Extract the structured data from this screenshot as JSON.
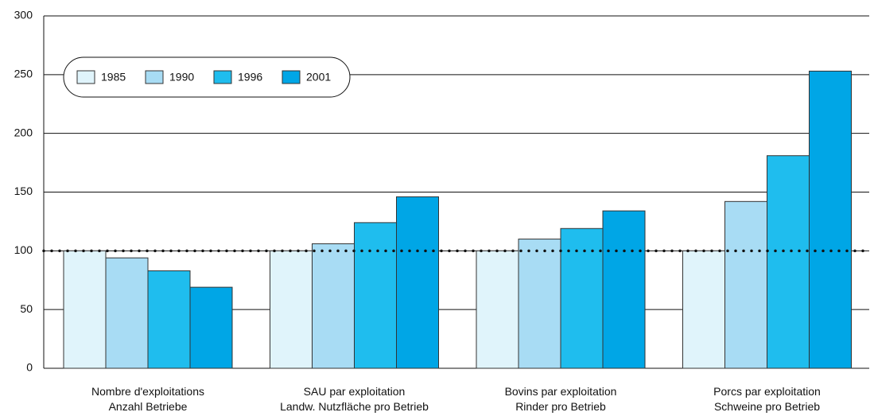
{
  "chart_data": {
    "type": "bar",
    "categories": [
      [
        "Nombre d'exploitations",
        "Anzahl Betriebe"
      ],
      [
        "SAU par exploitation",
        "Landw. Nutzfläche pro Betrieb"
      ],
      [
        "Bovins par exploitation",
        "Rinder pro Betrieb"
      ],
      [
        "Porcs par exploitation",
        "Schweine pro Betrieb"
      ]
    ],
    "series": [
      {
        "name": "1985",
        "color": "#e0f4fb",
        "values": [
          100,
          100,
          100,
          100
        ]
      },
      {
        "name": "1990",
        "color": "#a8dcf4",
        "values": [
          94,
          106,
          110,
          142
        ]
      },
      {
        "name": "1996",
        "color": "#1fbdee",
        "values": [
          83,
          124,
          119,
          181
        ]
      },
      {
        "name": "2001",
        "color": "#00a6e6",
        "values": [
          69,
          146,
          134,
          253
        ]
      }
    ],
    "ylim": [
      0,
      300
    ],
    "yticks": [
      0,
      50,
      100,
      150,
      200,
      250,
      300
    ],
    "grid": true,
    "reference_line": 100,
    "legend": "top-left"
  }
}
